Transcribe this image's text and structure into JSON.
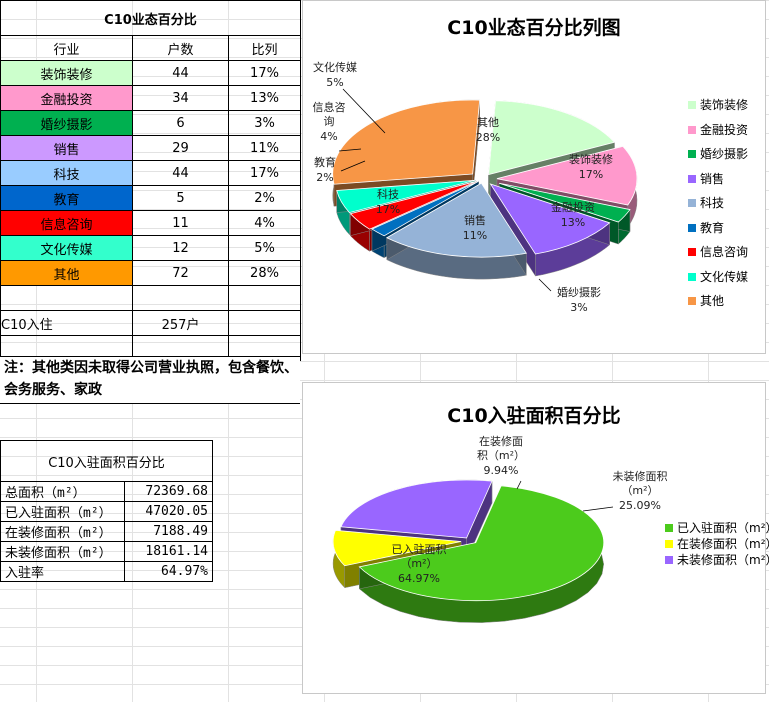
{
  "table1": {
    "title": "C10业态百分比",
    "headers": [
      "行业",
      "户数",
      "比列"
    ],
    "rows": [
      {
        "name": "装饰装修",
        "count": "44",
        "pct": "17%",
        "color": "#ccffcc"
      },
      {
        "name": "金融投资",
        "count": "34",
        "pct": "13%",
        "color": "#ff99cc"
      },
      {
        "name": "婚纱摄影",
        "count": "6",
        "pct": "3%",
        "color": "#00b050"
      },
      {
        "name": "销售",
        "count": "29",
        "pct": "11%",
        "color": "#cc99ff"
      },
      {
        "name": "科技",
        "count": "44",
        "pct": "17%",
        "color": "#99ccff"
      },
      {
        "name": "教育",
        "count": "5",
        "pct": "2%",
        "color": "#0066cc"
      },
      {
        "name": "信息咨询",
        "count": "11",
        "pct": "4%",
        "color": "#ff0000"
      },
      {
        "name": "文化传媒",
        "count": "12",
        "pct": "5%",
        "color": "#33ffcc"
      },
      {
        "name": "其他",
        "count": "72",
        "pct": "28%",
        "color": "#ff9900"
      }
    ],
    "total_label": "C10入住",
    "total_value": "257户"
  },
  "note": "注：其他类因未取得公司营业执照，包含餐饮、会务服务、家政",
  "table2": {
    "title": "C10入驻面积百分比",
    "rows": [
      {
        "label": "总面积（m²）",
        "value": "72369.68"
      },
      {
        "label": "已入驻面积（m²）",
        "value": "47020.05"
      },
      {
        "label": "在装修面积（m²）",
        "value": "7188.49"
      },
      {
        "label": "未装修面积（m²）",
        "value": "18161.14"
      },
      {
        "label": "入驻率",
        "value": "64.97%"
      }
    ]
  },
  "chart_data": [
    {
      "type": "pie",
      "title": "C10业态百分比列图",
      "categories": [
        "装饰装修",
        "金融投资",
        "婚纱摄影",
        "销售",
        "科技",
        "教育",
        "信息咨询",
        "文化传媒",
        "其他"
      ],
      "values": [
        17,
        13,
        3,
        11,
        17,
        2,
        4,
        5,
        28
      ],
      "labels": [
        "17%",
        "13%",
        "3%",
        "11%",
        "17%",
        "2%",
        "4%",
        "5%",
        "28%"
      ],
      "colors": [
        "#ccffcc",
        "#ff99cc",
        "#00b050",
        "#9966ff",
        "#95b3d7",
        "#0070c0",
        "#ff0000",
        "#00ffcc",
        "#f79646"
      ],
      "exploded": true,
      "legend": "right"
    },
    {
      "type": "pie",
      "title": "C10入驻面积百分比",
      "categories": [
        "已入驻面积（m²）",
        "在装修面积（m²）",
        "未装修面积（m²）"
      ],
      "values": [
        64.97,
        9.94,
        25.09
      ],
      "labels": [
        "64.97%",
        "9.94%",
        "25.09%"
      ],
      "colors": [
        "#4ccb1c",
        "#ffff00",
        "#9966ff"
      ],
      "exploded": true,
      "legend": "right"
    }
  ]
}
